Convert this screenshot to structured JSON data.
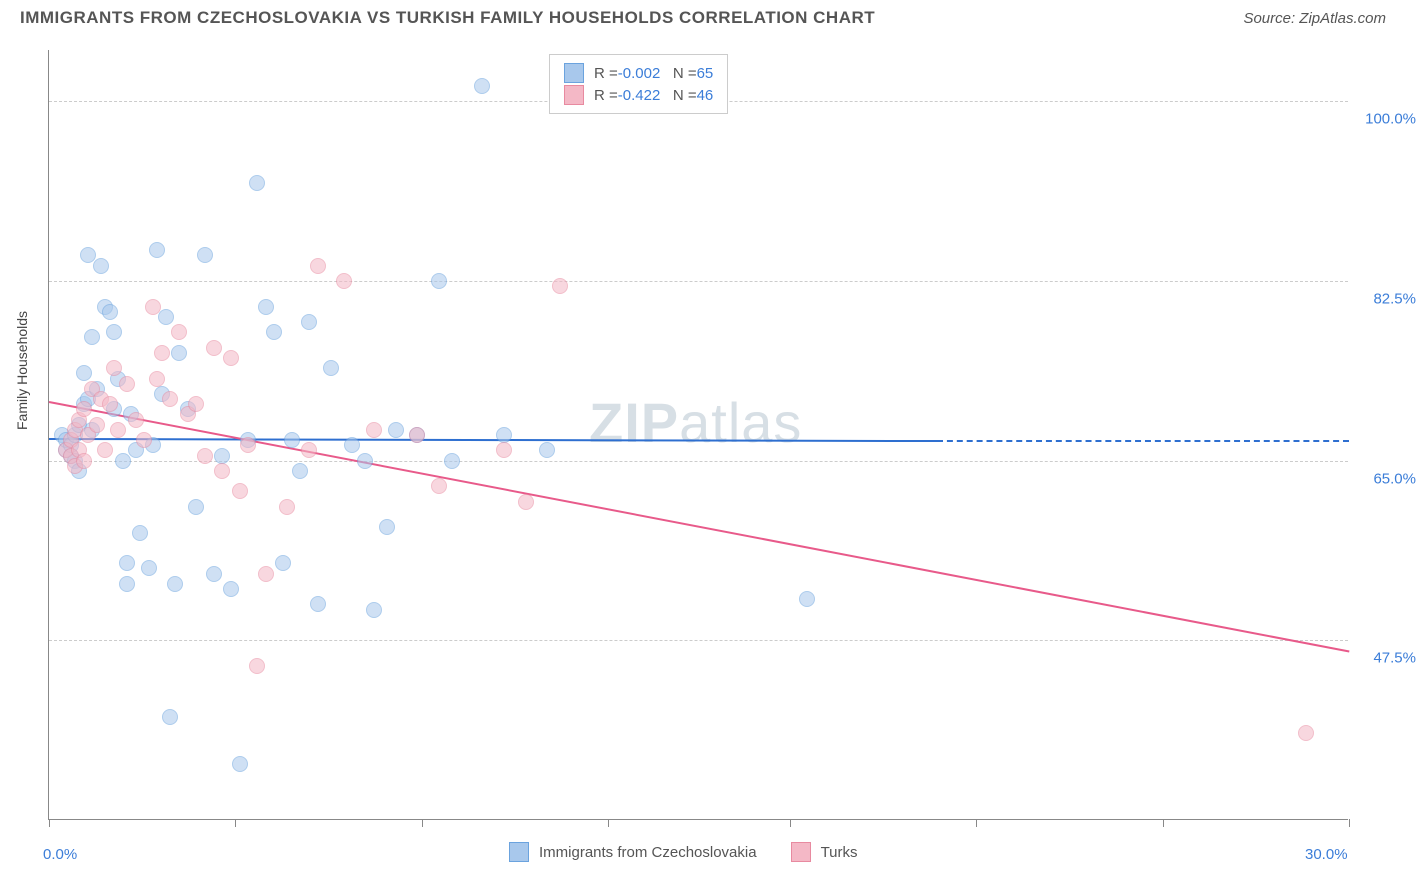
{
  "header": {
    "title": "IMMIGRANTS FROM CZECHOSLOVAKIA VS TURKISH FAMILY HOUSEHOLDS CORRELATION CHART",
    "source": "Source: ZipAtlas.com"
  },
  "watermark": "ZIPatlas",
  "chart": {
    "type": "scatter",
    "ylabel": "Family Households",
    "xlim": [
      0,
      30
    ],
    "ylim": [
      30,
      105
    ],
    "xtick_min_label": "0.0%",
    "xtick_max_label": "30.0%",
    "ytick_labels": [
      "47.5%",
      "65.0%",
      "82.5%",
      "100.0%"
    ],
    "ytick_values": [
      47.5,
      65.0,
      82.5,
      100.0
    ],
    "vtick_positions": [
      0,
      4.3,
      8.6,
      12.9,
      17.1,
      21.4,
      25.7,
      30.0
    ],
    "background_color": "#ffffff",
    "grid_color": "#cccccc",
    "axis_color": "#888888",
    "point_radius": 8,
    "point_border_width": 1.5,
    "series": [
      {
        "name": "Immigrants from Czechoslovakia",
        "fill": "#a8c8ec",
        "border": "#6ba3de",
        "fill_opacity": 0.55,
        "R": "-0.002",
        "N": "65",
        "trend": {
          "x1": 0,
          "y1": 67.2,
          "x2": 20.5,
          "y2": 67.0,
          "color": "#2e6fd0",
          "dash_to_x": 30.0,
          "dash_y": 67.0
        },
        "points": [
          [
            0.3,
            67.5
          ],
          [
            0.4,
            66.0
          ],
          [
            0.4,
            67.0
          ],
          [
            0.5,
            65.5
          ],
          [
            0.5,
            66.5
          ],
          [
            0.6,
            65.0
          ],
          [
            0.6,
            67.5
          ],
          [
            0.7,
            64.0
          ],
          [
            0.7,
            68.5
          ],
          [
            0.8,
            70.5
          ],
          [
            0.8,
            73.5
          ],
          [
            0.9,
            71.0
          ],
          [
            0.9,
            85.0
          ],
          [
            1.0,
            68.0
          ],
          [
            1.0,
            77.0
          ],
          [
            1.1,
            72.0
          ],
          [
            1.2,
            84.0
          ],
          [
            1.3,
            80.0
          ],
          [
            1.4,
            79.5
          ],
          [
            1.5,
            77.5
          ],
          [
            1.5,
            70.0
          ],
          [
            1.6,
            73.0
          ],
          [
            1.7,
            65.0
          ],
          [
            1.8,
            53.0
          ],
          [
            1.8,
            55.0
          ],
          [
            1.9,
            69.5
          ],
          [
            2.0,
            66.0
          ],
          [
            2.1,
            58.0
          ],
          [
            2.3,
            54.5
          ],
          [
            2.4,
            66.5
          ],
          [
            2.5,
            85.5
          ],
          [
            2.6,
            71.5
          ],
          [
            2.7,
            79.0
          ],
          [
            2.8,
            40.0
          ],
          [
            2.9,
            53.0
          ],
          [
            3.0,
            75.5
          ],
          [
            3.2,
            70.0
          ],
          [
            3.4,
            60.5
          ],
          [
            3.6,
            85.0
          ],
          [
            3.8,
            54.0
          ],
          [
            4.0,
            65.5
          ],
          [
            4.2,
            52.5
          ],
          [
            4.4,
            35.5
          ],
          [
            4.6,
            67.0
          ],
          [
            4.8,
            92.0
          ],
          [
            5.0,
            80.0
          ],
          [
            5.2,
            77.5
          ],
          [
            5.4,
            55.0
          ],
          [
            5.6,
            67.0
          ],
          [
            5.8,
            64.0
          ],
          [
            6.0,
            78.5
          ],
          [
            6.2,
            51.0
          ],
          [
            6.5,
            74.0
          ],
          [
            7.0,
            66.5
          ],
          [
            7.3,
            65.0
          ],
          [
            7.5,
            50.5
          ],
          [
            7.8,
            58.5
          ],
          [
            8.0,
            68.0
          ],
          [
            8.5,
            67.5
          ],
          [
            9.0,
            82.5
          ],
          [
            9.3,
            65.0
          ],
          [
            10.0,
            101.5
          ],
          [
            10.5,
            67.5
          ],
          [
            11.5,
            66.0
          ],
          [
            17.5,
            51.5
          ]
        ]
      },
      {
        "name": "Turks",
        "fill": "#f4b8c6",
        "border": "#e88aa0",
        "fill_opacity": 0.55,
        "R": "-0.422",
        "N": "46",
        "trend": {
          "x1": 0,
          "y1": 70.8,
          "x2": 30.0,
          "y2": 46.5,
          "color": "#e85a8a"
        },
        "points": [
          [
            0.4,
            66.0
          ],
          [
            0.5,
            65.5
          ],
          [
            0.5,
            67.0
          ],
          [
            0.6,
            64.5
          ],
          [
            0.6,
            68.0
          ],
          [
            0.7,
            66.0
          ],
          [
            0.7,
            69.0
          ],
          [
            0.8,
            65.0
          ],
          [
            0.8,
            70.0
          ],
          [
            0.9,
            67.5
          ],
          [
            1.0,
            72.0
          ],
          [
            1.1,
            68.5
          ],
          [
            1.2,
            71.0
          ],
          [
            1.3,
            66.0
          ],
          [
            1.4,
            70.5
          ],
          [
            1.5,
            74.0
          ],
          [
            1.6,
            68.0
          ],
          [
            1.8,
            72.5
          ],
          [
            2.0,
            69.0
          ],
          [
            2.2,
            67.0
          ],
          [
            2.4,
            80.0
          ],
          [
            2.5,
            73.0
          ],
          [
            2.6,
            75.5
          ],
          [
            2.8,
            71.0
          ],
          [
            3.0,
            77.5
          ],
          [
            3.2,
            69.5
          ],
          [
            3.4,
            70.5
          ],
          [
            3.6,
            65.5
          ],
          [
            3.8,
            76.0
          ],
          [
            4.0,
            64.0
          ],
          [
            4.2,
            75.0
          ],
          [
            4.4,
            62.0
          ],
          [
            4.6,
            66.5
          ],
          [
            4.8,
            45.0
          ],
          [
            5.0,
            54.0
          ],
          [
            5.5,
            60.5
          ],
          [
            6.0,
            66.0
          ],
          [
            6.2,
            84.0
          ],
          [
            6.8,
            82.5
          ],
          [
            7.5,
            68.0
          ],
          [
            8.5,
            67.5
          ],
          [
            9.0,
            62.5
          ],
          [
            10.5,
            66.0
          ],
          [
            11.0,
            61.0
          ],
          [
            11.8,
            82.0
          ],
          [
            29.0,
            38.5
          ]
        ]
      }
    ],
    "legend_top": {
      "rows": [
        {
          "swatch_fill": "#a8c8ec",
          "swatch_border": "#6ba3de",
          "label_R": "R =",
          "val_R": "-0.002",
          "label_N": "N =",
          "val_N": "65"
        },
        {
          "swatch_fill": "#f4b8c6",
          "swatch_border": "#e88aa0",
          "label_R": "R =",
          "val_R": "-0.422",
          "label_N": "N =",
          "val_N": "46"
        }
      ]
    },
    "legend_bottom": [
      {
        "swatch_fill": "#a8c8ec",
        "swatch_border": "#6ba3de",
        "label": "Immigrants from Czechoslovakia"
      },
      {
        "swatch_fill": "#f4b8c6",
        "swatch_border": "#e88aa0",
        "label": "Turks"
      }
    ]
  }
}
